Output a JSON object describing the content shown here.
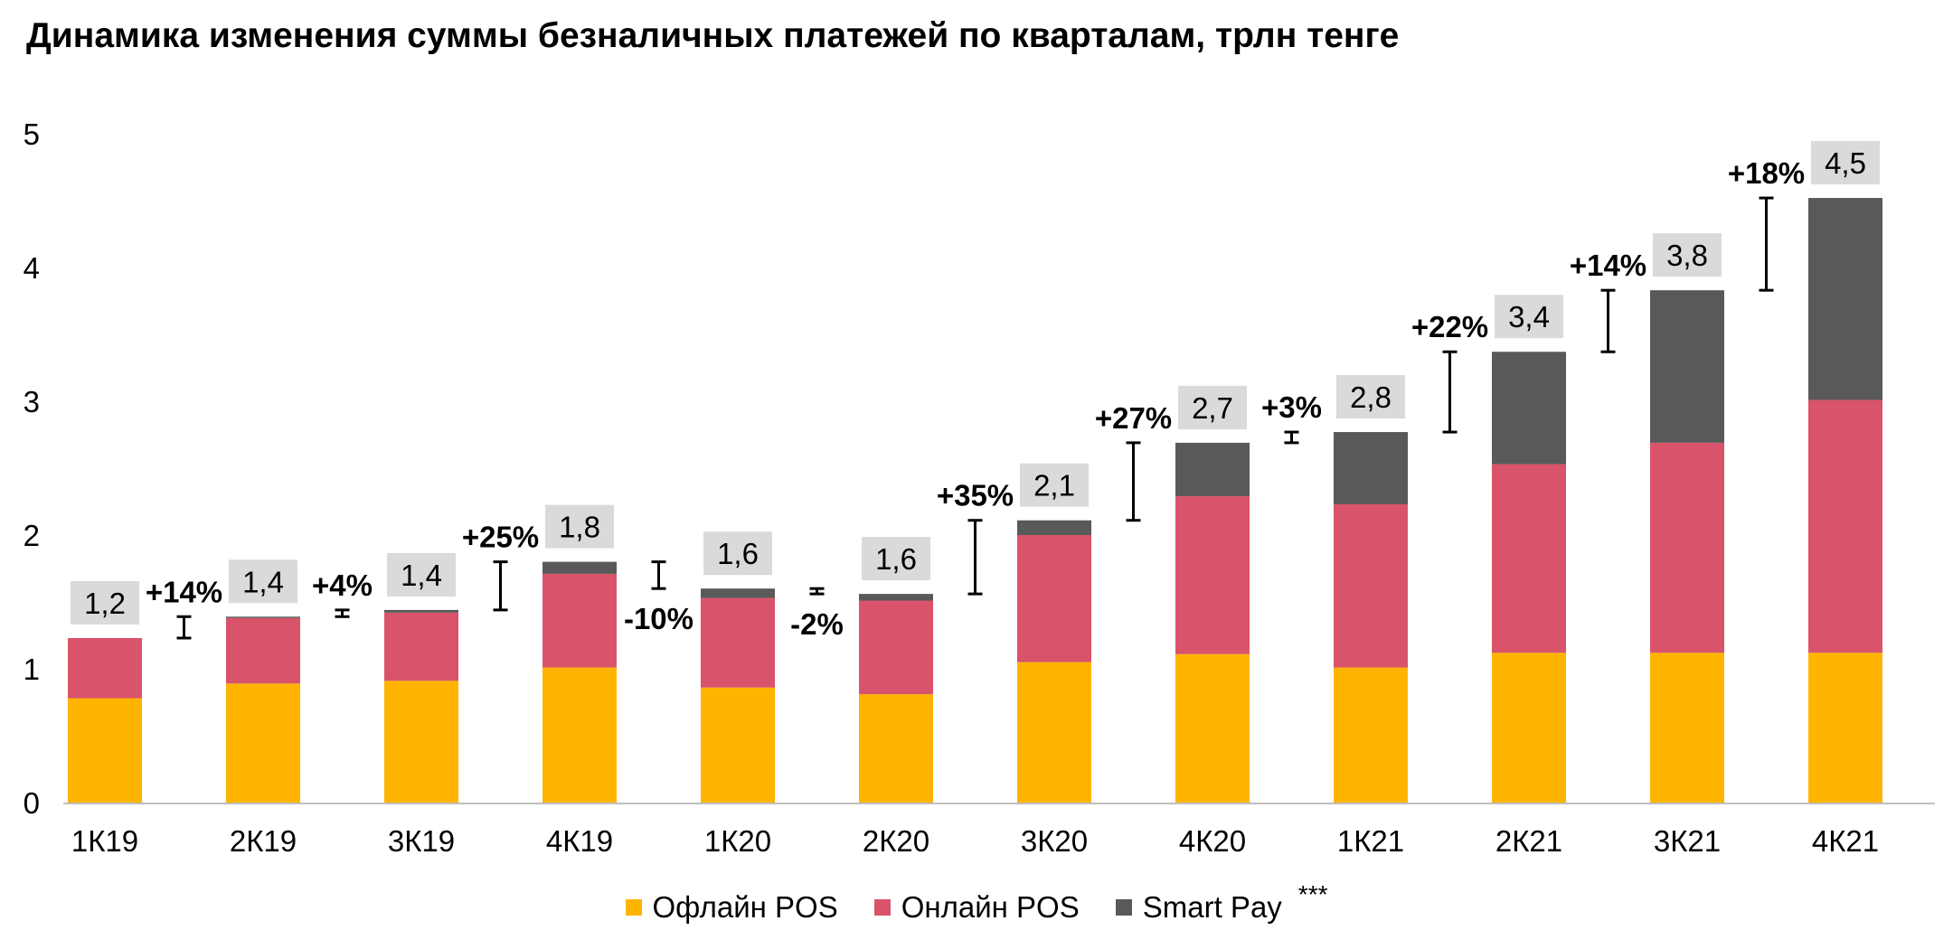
{
  "title": "Динамика изменения суммы безналичных платежей по кварталам, трлн тенге",
  "colors": {
    "offline": "#FFB400",
    "online": "#D9536B",
    "smartpay": "#595959",
    "total_box": "#DADADA",
    "axis": "#BFBFBF"
  },
  "legend": [
    {
      "label": "Офлайн POS",
      "color": "#FFB400",
      "sup": ""
    },
    {
      "label": "Онлайн POS",
      "color": "#D9536B",
      "sup": ""
    },
    {
      "label": "Smart Pay",
      "color": "#595959",
      "sup": "***"
    }
  ],
  "chart_data": {
    "type": "bar",
    "stacked": true,
    "title": "Динамика изменения суммы безналичных платежей по кварталам, трлн тенге",
    "categories": [
      "1К19",
      "2К19",
      "3К19",
      "4К19",
      "1К20",
      "2К20",
      "3К20",
      "4К20",
      "1К21",
      "2К21",
      "3К21",
      "4К21"
    ],
    "series": [
      {
        "name": "Офлайн POS",
        "color": "#FFB400",
        "values": [
          0.78,
          0.89,
          0.91,
          1.01,
          0.86,
          0.81,
          1.05,
          1.11,
          1.01,
          1.12,
          1.12,
          1.12
        ]
      },
      {
        "name": "Онлайн POS",
        "color": "#D9536B",
        "values": [
          0.45,
          0.49,
          0.51,
          0.7,
          0.67,
          0.7,
          0.95,
          1.18,
          1.22,
          1.41,
          1.57,
          1.89
        ]
      },
      {
        "name": "Smart Pay",
        "color": "#595959",
        "values": [
          0.0,
          0.01,
          0.02,
          0.09,
          0.07,
          0.05,
          0.11,
          0.4,
          0.54,
          0.84,
          1.14,
          1.51
        ]
      }
    ],
    "totals": [
      "1,2",
      "1,4",
      "1,4",
      "1,8",
      "1,6",
      "1,6",
      "2,1",
      "2,7",
      "2,8",
      "3,4",
      "3,8",
      "4,5"
    ],
    "growth": [
      "+14%",
      "+4%",
      "+25%",
      "-10%",
      "-2%",
      "+35%",
      "+27%",
      "+3%",
      "+22%",
      "+14%",
      "+18%"
    ],
    "ylim": [
      0,
      5
    ],
    "yticks": [
      0,
      1,
      2,
      3,
      4,
      5
    ],
    "grid": false,
    "legend_position": "bottom"
  }
}
